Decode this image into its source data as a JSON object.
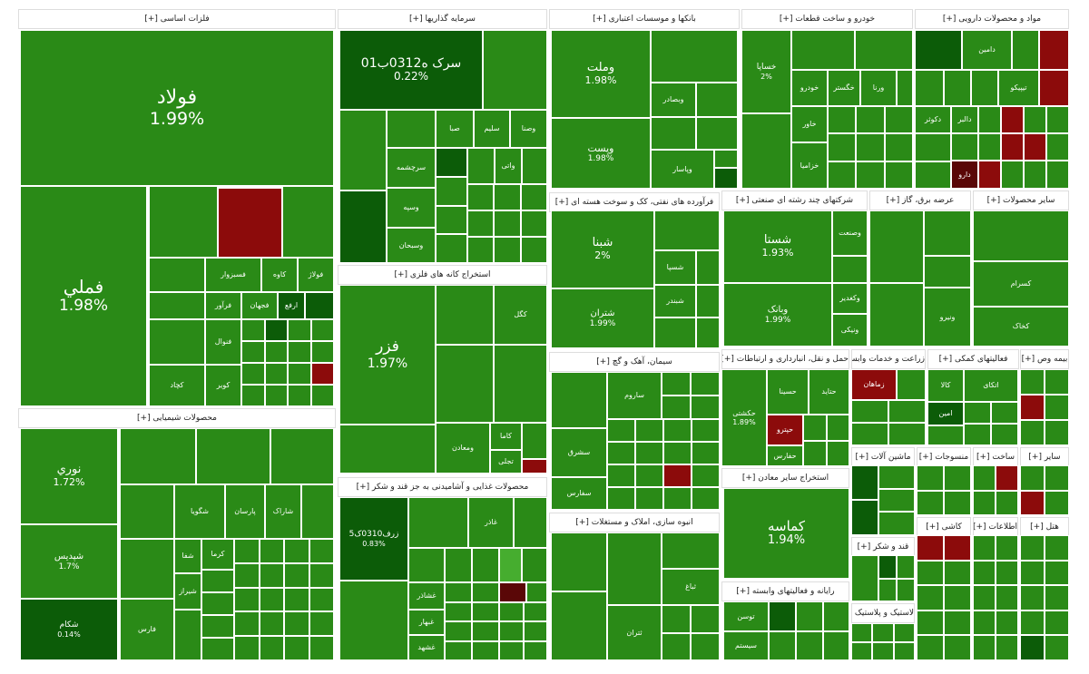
{
  "sectors": [
    {
      "title": "فلزات اساسی [+]",
      "tiles": [
        {
          "label": "فولاد",
          "change": "1.99%"
        },
        {
          "label": "فملي",
          "change": "1.98%"
        },
        {
          "label": "کاوه"
        },
        {
          "label": "فولاژ"
        },
        {
          "label": "فسبزوار"
        },
        {
          "label": "فجهان"
        },
        {
          "label": "ارفع"
        },
        {
          "label": "فرآور"
        },
        {
          "label": "فنوال"
        },
        {
          "label": "کویر"
        },
        {
          "label": "کچاد"
        }
      ]
    },
    {
      "title": "محصولات شیمیایی [+]",
      "tiles": [
        {
          "label": "نوري",
          "change": "1.72%"
        },
        {
          "label": "شپدیس",
          "change": "1.7%"
        },
        {
          "label": "شکام",
          "change": "0.14%"
        },
        {
          "label": "پارسان"
        },
        {
          "label": "شگویا"
        },
        {
          "label": "شاراک"
        },
        {
          "label": "شیراز"
        },
        {
          "label": "فارس"
        },
        {
          "label": "کرما"
        },
        {
          "label": "شفا"
        }
      ]
    },
    {
      "title": "سرمایه گذاریها [+]",
      "tiles": [
        {
          "label": "سرک ه0312ب01",
          "change": "0.22%"
        },
        {
          "label": "سرچشمه"
        },
        {
          "label": "صبا"
        },
        {
          "label": "سلیم"
        },
        {
          "label": "وصنا"
        },
        {
          "label": "وسپه"
        },
        {
          "label": "وسبحان"
        },
        {
          "label": "واتی"
        }
      ]
    },
    {
      "title": "استخراج کانه های فلزی [+]",
      "tiles": [
        {
          "label": "فزر",
          "change": "1.97%"
        },
        {
          "label": "کاما"
        },
        {
          "label": "ومعادن"
        },
        {
          "label": "تجلی"
        },
        {
          "label": "کگل"
        }
      ]
    },
    {
      "title": "محصولات غذایی و آشامیدنی به جز قند و شکر [+]",
      "tiles": [
        {
          "label": "زرف0310ک5",
          "change": "0.83%"
        },
        {
          "label": "غاذر"
        },
        {
          "label": "غشاذر"
        },
        {
          "label": "غبهار"
        },
        {
          "label": "غشهد"
        }
      ]
    },
    {
      "title": "بانکها و موسسات اعتباری [+]",
      "tiles": [
        {
          "label": "وملت",
          "change": "1.98%"
        },
        {
          "label": "وپست",
          "change": "1.98%"
        },
        {
          "label": "وبصادر"
        },
        {
          "label": "وپاسار"
        }
      ]
    },
    {
      "title": "فرآورده های نفتی، کک و سوخت هسته ای [+]",
      "tiles": [
        {
          "label": "شبنا",
          "change": "2%"
        },
        {
          "label": "شتران",
          "change": "1.99%"
        },
        {
          "label": "شسپا"
        },
        {
          "label": "شبندر"
        }
      ]
    },
    {
      "title": "سیمان، آهک و گچ [+]",
      "tiles": [
        {
          "label": "ساروم"
        },
        {
          "label": "سشرق"
        },
        {
          "label": "سفارس"
        }
      ]
    },
    {
      "title": "انبوه سازی، املاک و مستغلات [+]",
      "tiles": [
        {
          "label": "ثباغ"
        },
        {
          "label": "ثتران"
        }
      ]
    },
    {
      "title": "خودرو و ساخت قطعات [+]",
      "tiles": [
        {
          "label": "خساپا",
          "change": "2%"
        },
        {
          "label": "خگستر"
        },
        {
          "label": "ورنا"
        },
        {
          "label": "خودرو"
        },
        {
          "label": "خاور"
        },
        {
          "label": "خزامیا"
        }
      ]
    },
    {
      "title": "مواد و محصولات دارویی [+]",
      "tiles": [
        {
          "label": "دامین"
        },
        {
          "label": "تیپیکو"
        },
        {
          "label": "دالبر"
        },
        {
          "label": "دکوثر"
        },
        {
          "label": "دارو"
        }
      ]
    },
    {
      "title": "شرکتهای چند رشته ای صنعتی [+]",
      "tiles": [
        {
          "label": "شستا",
          "change": "1.93%"
        },
        {
          "label": "وبانک",
          "change": "1.99%"
        },
        {
          "label": "وصنعت"
        },
        {
          "label": "وکغدیر"
        },
        {
          "label": "ونیکی"
        }
      ]
    },
    {
      "title": "عرضه برق، گاز [+]",
      "tiles": [
        {
          "label": "ونیرو"
        }
      ]
    },
    {
      "title": "سایر محصولات [+]",
      "tiles": [
        {
          "label": "کسرام"
        },
        {
          "label": "کخاک"
        }
      ]
    },
    {
      "title": "حمل و نقل، انبارداری و ارتباطات [+]",
      "tiles": [
        {
          "label": "حسینا"
        },
        {
          "label": "حتاید"
        },
        {
          "label": "حپترو"
        },
        {
          "label": "حکشتی",
          "change": "1.89%"
        },
        {
          "label": "حفارس"
        }
      ]
    },
    {
      "title": "زراعت و خدمات وابسته [+]",
      "tiles": [
        {
          "label": "زماهان"
        }
      ]
    },
    {
      "title": "فعالیتهای کمکی [+]",
      "tiles": [
        {
          "label": "کالا"
        },
        {
          "label": "اتکای"
        },
        {
          "label": "امین"
        }
      ]
    },
    {
      "title": "بیمه وص [+]",
      "tiles": []
    },
    {
      "title": "استخراج سایر معادن [+]",
      "tiles": [
        {
          "label": "کماسه",
          "change": "1.94%"
        }
      ]
    },
    {
      "title": "رایانه و فعالیتهای وابسته [+]",
      "tiles": [
        {
          "label": "توسن"
        },
        {
          "label": "سیستم"
        }
      ]
    },
    {
      "title": "ماشین آلات [+]",
      "tiles": []
    },
    {
      "title": "قند و شکر [+]",
      "tiles": []
    },
    {
      "title": "لاستیک و پلاستیک [+]",
      "tiles": []
    },
    {
      "title": "منسوجات [+]",
      "tiles": []
    },
    {
      "title": "ساخت [+]",
      "tiles": []
    },
    {
      "title": "سایر [+]",
      "tiles": []
    },
    {
      "title": "کاشی [+]",
      "tiles": []
    },
    {
      "title": "اطلاعات [+]",
      "tiles": []
    },
    {
      "title": "هتل [+]",
      "tiles": []
    }
  ]
}
